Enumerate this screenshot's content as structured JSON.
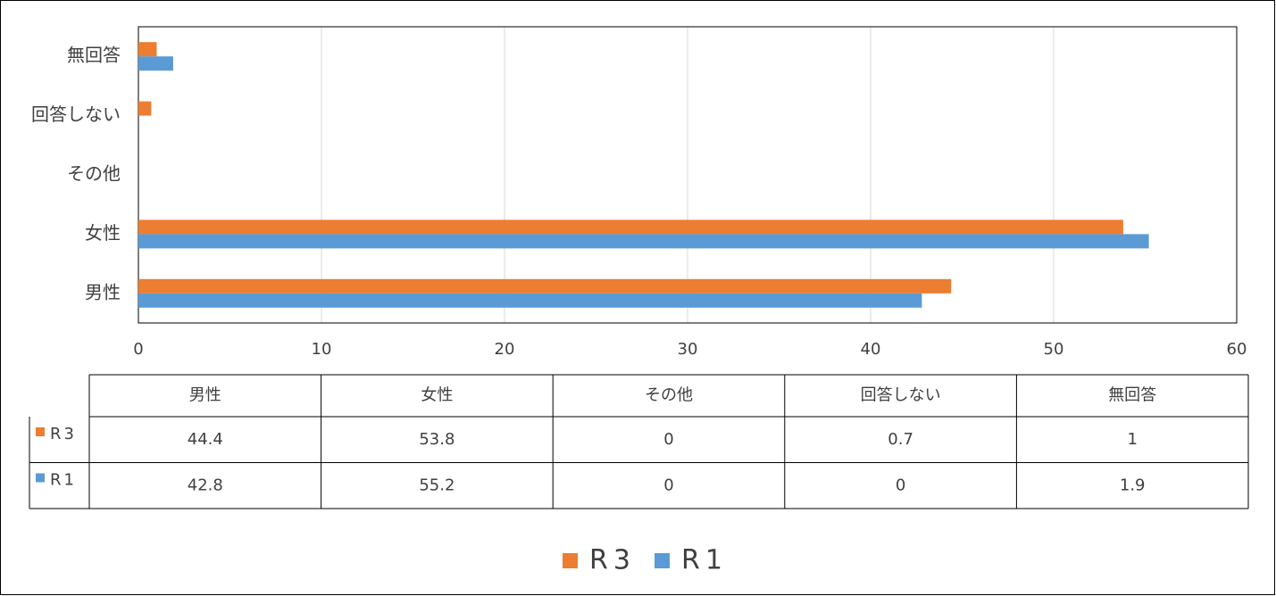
{
  "chart_data": {
    "type": "hbar",
    "categories": [
      "男性",
      "女性",
      "その他",
      "回答しない",
      "無回答"
    ],
    "series": [
      {
        "name": "R3",
        "color": "#ED7D31",
        "values": [
          44.4,
          53.8,
          0,
          0.7,
          1
        ]
      },
      {
        "name": "R1",
        "color": "#5B9BD5",
        "values": [
          42.8,
          55.2,
          0,
          0,
          1.9
        ]
      }
    ],
    "xlim": [
      0,
      60
    ],
    "xticks": [
      0,
      10,
      20,
      30,
      40,
      50,
      60
    ],
    "grid": true,
    "data_table": true,
    "legend": "bottom"
  }
}
